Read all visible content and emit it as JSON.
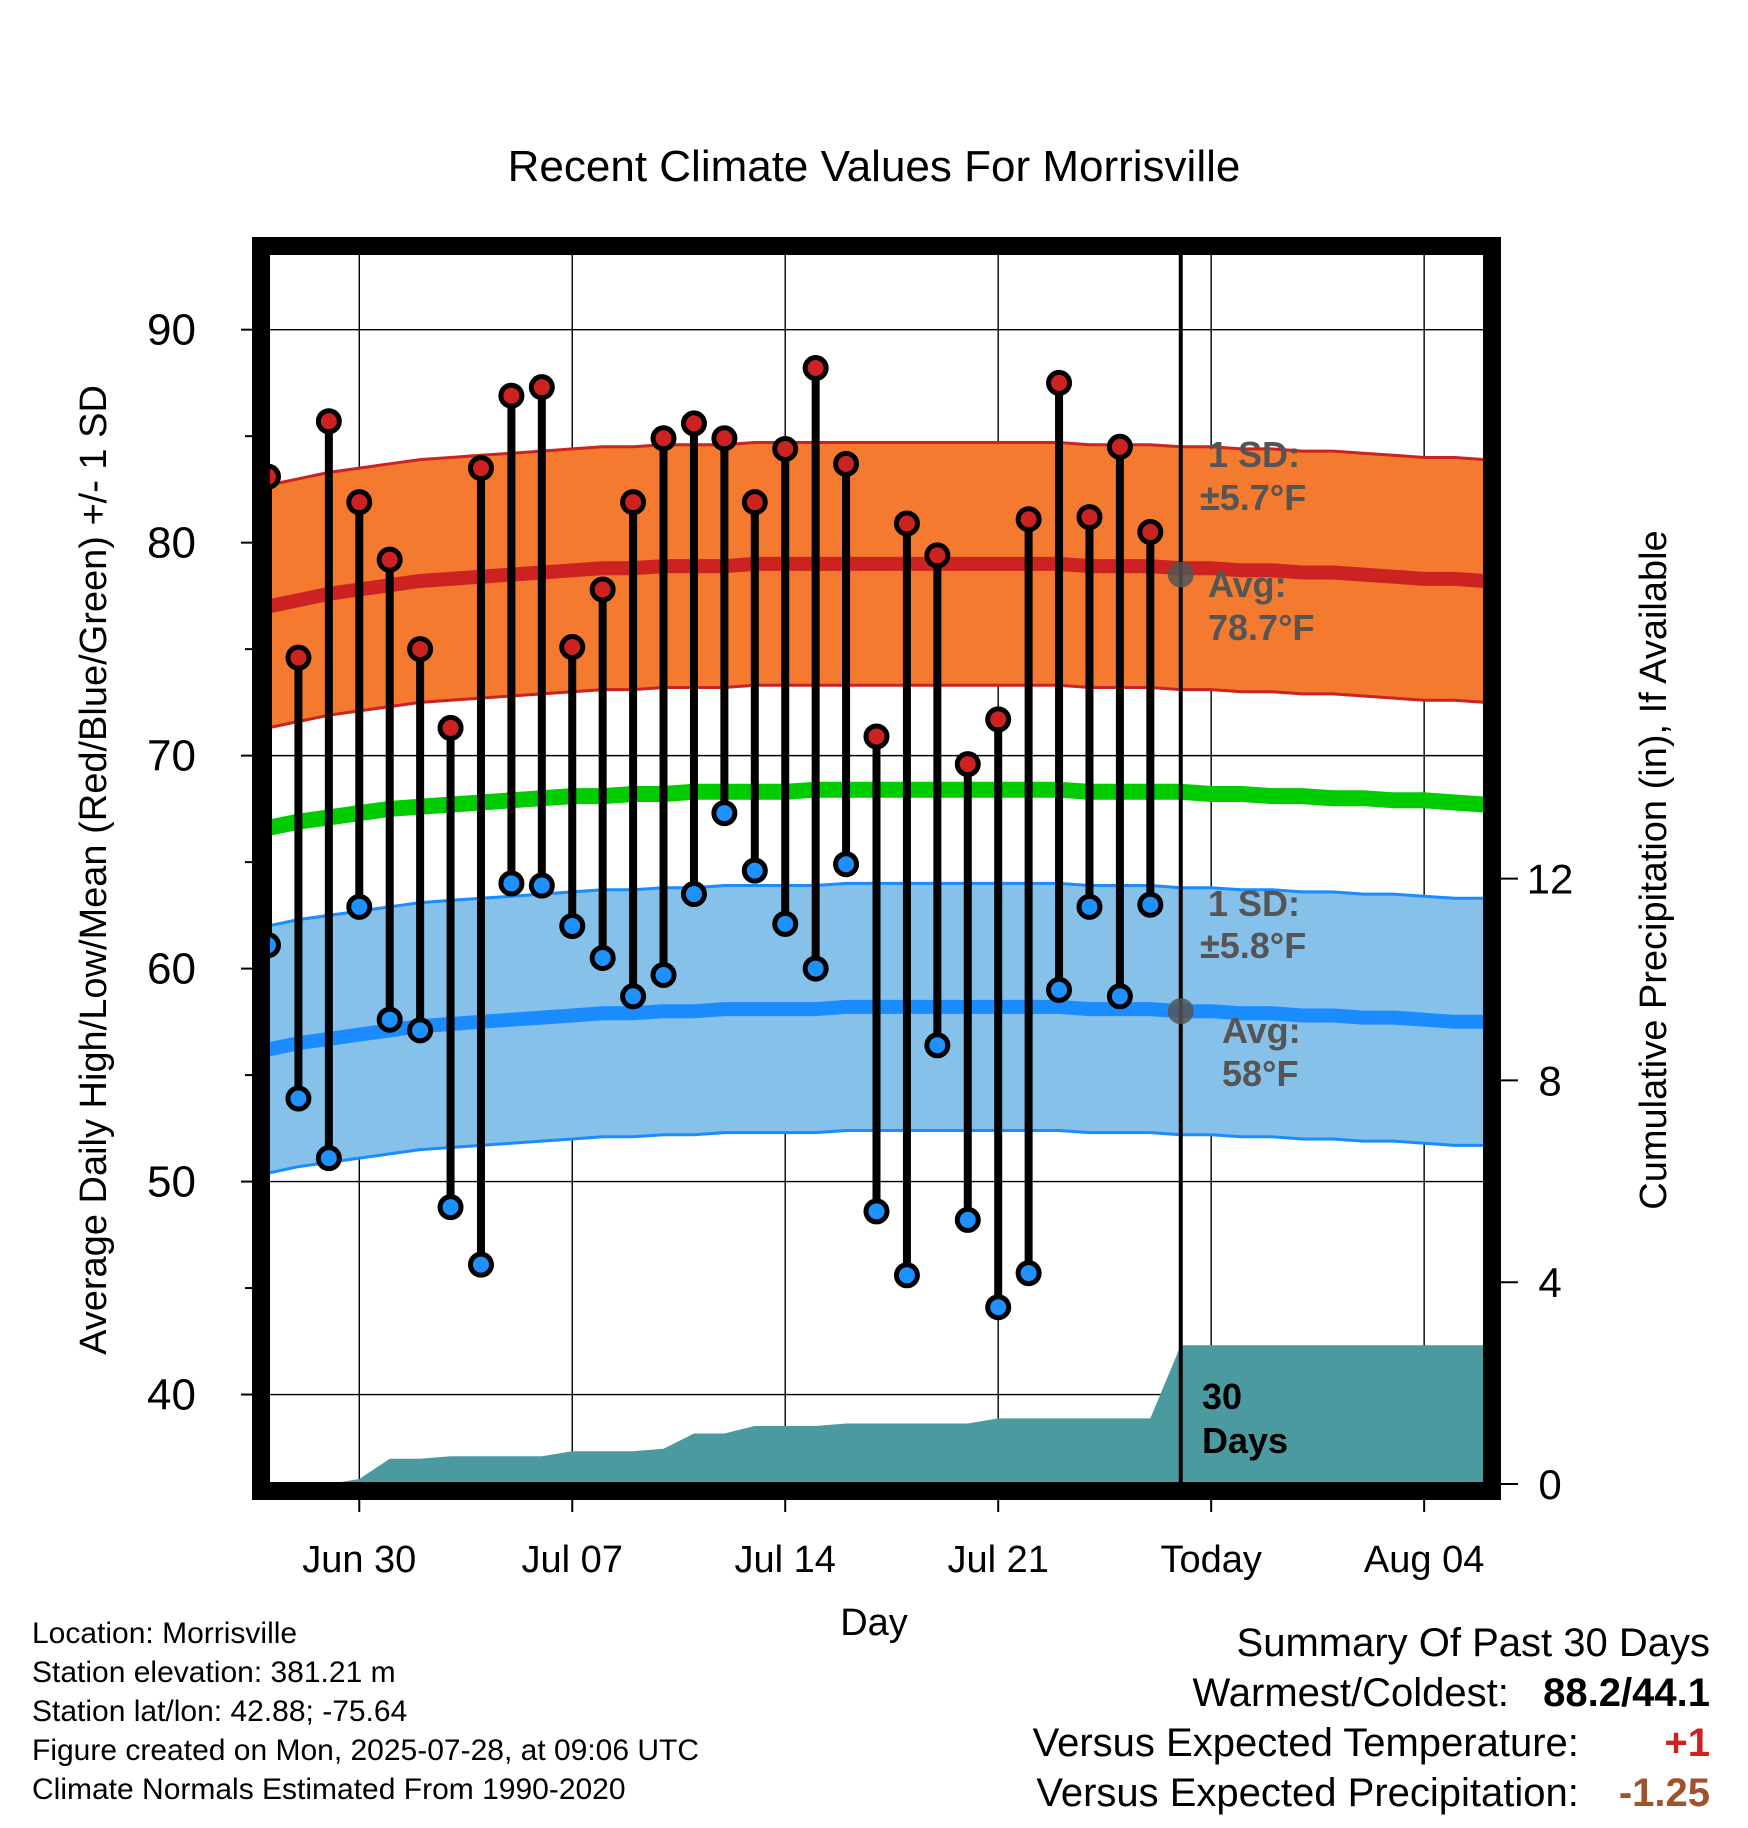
{
  "chart_data": {
    "type": "line",
    "title": "Recent Climate Values For Morrisville",
    "xlabel": "Day",
    "ylabel": "Average Daily High/Low/Mean (Red/Blue/Green) +/- 1 SD",
    "ylabel_right": "Cumulative Precipitation (in), If Available",
    "x_tick_labels": [
      "Jun 30",
      "Jul 07",
      "Jul 14",
      "Jul 21",
      "Today",
      "Aug 04"
    ],
    "ylim": [
      35.8,
      93.6
    ],
    "y_ticks": [
      40,
      50,
      60,
      70,
      80,
      90
    ],
    "y2lim": [
      0,
      24.4
    ],
    "y2_ticks": [
      0,
      4,
      8,
      12
    ],
    "grid": true,
    "days": [
      "Jun 27",
      "Jun 28",
      "Jun 29",
      "Jun 30",
      "Jul 01",
      "Jul 02",
      "Jul 03",
      "Jul 04",
      "Jul 05",
      "Jul 06",
      "Jul 07",
      "Jul 08",
      "Jul 09",
      "Jul 10",
      "Jul 11",
      "Jul 12",
      "Jul 13",
      "Jul 14",
      "Jul 15",
      "Jul 16",
      "Jul 17",
      "Jul 18",
      "Jul 19",
      "Jul 20",
      "Jul 21",
      "Jul 22",
      "Jul 23",
      "Jul 24",
      "Jul 25",
      "Jul 26",
      "Jul 27",
      "Jul 28",
      "Jul 29",
      "Jul 30",
      "Jul 31",
      "Aug 01",
      "Aug 02",
      "Aug 03",
      "Aug 04",
      "Aug 05",
      "Aug 06"
    ],
    "observed_high": [
      83.1,
      74.6,
      85.7,
      81.9,
      79.2,
      75.0,
      71.3,
      83.5,
      86.9,
      87.3,
      75.1,
      77.8,
      81.9,
      84.9,
      85.6,
      84.9,
      81.9,
      84.4,
      88.2,
      83.7,
      70.9,
      80.9,
      79.4,
      69.6,
      71.7,
      81.1,
      87.5,
      81.2,
      84.5,
      80.5
    ],
    "observed_low": [
      61.1,
      53.9,
      51.1,
      62.9,
      57.6,
      57.1,
      48.8,
      46.1,
      64.0,
      63.9,
      62.0,
      60.5,
      58.7,
      59.7,
      63.5,
      67.3,
      64.6,
      62.1,
      60.0,
      64.9,
      48.6,
      45.6,
      56.4,
      48.2,
      44.1,
      45.7,
      59.0,
      62.9,
      58.7,
      63.0
    ],
    "series": [
      {
        "color": "#cc2222",
        "values": [
          77.0,
          77.3,
          77.6,
          77.8,
          78.0,
          78.2,
          78.3,
          78.4,
          78.5,
          78.6,
          78.7,
          78.8,
          78.8,
          78.9,
          78.9,
          78.9,
          79.0,
          79.0,
          79.0,
          79.0,
          79.0,
          79.0,
          79.0,
          79.0,
          79.0,
          79.0,
          79.0,
          78.9,
          78.9,
          78.9,
          78.8,
          78.8,
          78.7,
          78.7,
          78.6,
          78.6,
          78.5,
          78.4,
          78.3,
          78.3,
          78.2
        ],
        "sd": 5.7
      },
      {
        "color": "#00cc00",
        "values": [
          66.6,
          66.9,
          67.1,
          67.3,
          67.5,
          67.6,
          67.7,
          67.8,
          67.9,
          68.0,
          68.1,
          68.1,
          68.2,
          68.2,
          68.3,
          68.3,
          68.3,
          68.3,
          68.4,
          68.4,
          68.4,
          68.4,
          68.4,
          68.4,
          68.4,
          68.4,
          68.4,
          68.3,
          68.3,
          68.3,
          68.3,
          68.2,
          68.2,
          68.1,
          68.1,
          68.0,
          68.0,
          67.9,
          67.9,
          67.8,
          67.7
        ]
      },
      {
        "color": "#1a8cff",
        "values": [
          56.2,
          56.5,
          56.7,
          56.9,
          57.1,
          57.3,
          57.4,
          57.5,
          57.6,
          57.7,
          57.8,
          57.9,
          57.9,
          58.0,
          58.0,
          58.1,
          58.1,
          58.1,
          58.1,
          58.2,
          58.2,
          58.2,
          58.2,
          58.2,
          58.2,
          58.2,
          58.2,
          58.1,
          58.1,
          58.1,
          58.0,
          58.0,
          57.9,
          57.9,
          57.8,
          57.8,
          57.7,
          57.7,
          57.6,
          57.5,
          57.5
        ],
        "sd": 5.8
      }
    ],
    "cumulative_precip": [
      0.0,
      0.0,
      0.0,
      0.1,
      0.5,
      0.5,
      0.55,
      0.55,
      0.55,
      0.55,
      0.65,
      0.65,
      0.65,
      0.7,
      1.0,
      1.0,
      1.15,
      1.15,
      1.15,
      1.2,
      1.2,
      1.2,
      1.2,
      1.2,
      1.3,
      1.3,
      1.3,
      1.3,
      1.3,
      1.3,
      2.75,
      2.75,
      2.75,
      2.75,
      2.75,
      2.75,
      2.75,
      2.75,
      2.75,
      2.75,
      2.75
    ],
    "annotations": {
      "high_sd_title": "1 SD:",
      "high_sd_value": "±5.7°F",
      "high_avg_title": "Avg:",
      "high_avg_value": "78.7°F",
      "low_sd_title": "1 SD:",
      "low_sd_value": "±5.8°F",
      "low_avg_title": "Avg:",
      "low_avg_value": "58°F",
      "window_line1": "30",
      "window_line2": "Days"
    },
    "today_index": 30,
    "colors": {
      "high_band": "#f47a30",
      "high_line": "#cc2222",
      "low_band": "#85c1e9",
      "low_line": "#1a8cff",
      "mean_line": "#00cc00",
      "precip": "#4a9aa0",
      "high_dot": "#cc2222",
      "low_dot": "#1e90ff",
      "annotation": "#555555"
    }
  },
  "info": {
    "location": "Location: Morrisville",
    "elevation": "Station elevation: 381.21 m",
    "latlon": "Station lat/lon: 42.88; -75.64",
    "created": "Figure created on Mon, 2025-07-28, at 09:06 UTC",
    "normals": "Climate Normals Estimated From 1990-2020"
  },
  "summary": {
    "heading": "Summary Of Past 30 Days",
    "warm_cold_label": "Warmest/Coldest:",
    "warm_cold_value": "88.2/44.1",
    "temp_label": "Versus Expected Temperature:",
    "temp_value": "+1",
    "temp_color": "#cc2222",
    "precip_label": "Versus Expected Precipitation:",
    "precip_value": "-1.25",
    "precip_color": "#a0522d"
  }
}
